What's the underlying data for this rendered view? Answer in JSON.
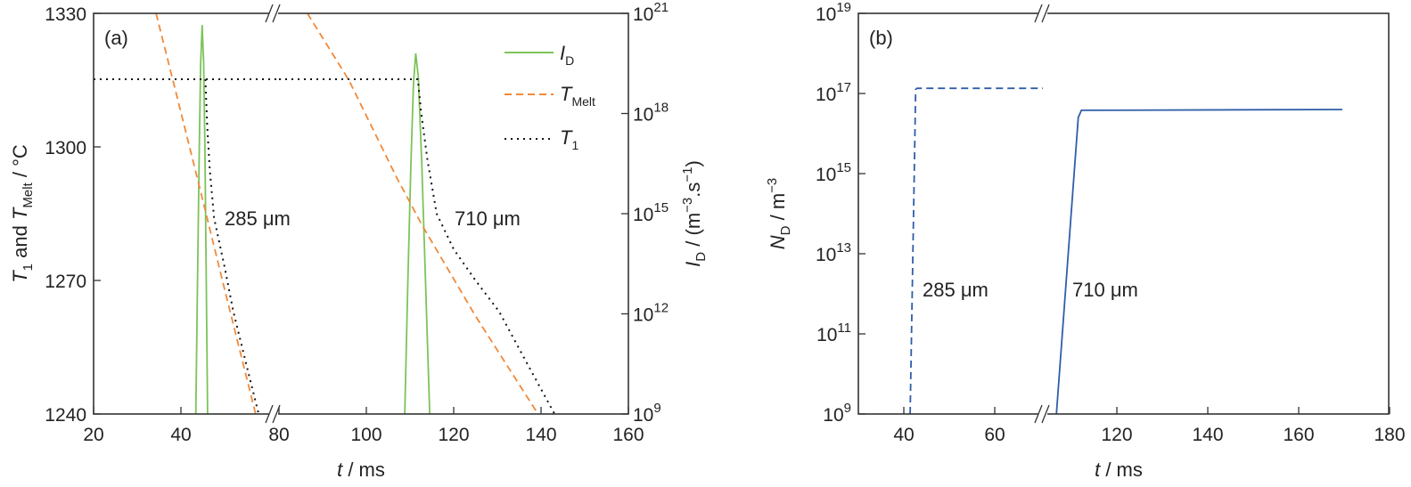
{
  "chart_data": [
    {
      "type": "line",
      "panel_label": "(a)",
      "xlabel": {
        "var": "t",
        "unit": " / ms"
      },
      "ylabel_left": {
        "v1": "T",
        "s1": "1",
        "mid": " and ",
        "v2": "T",
        "s2": "Melt",
        "unit": " / °C"
      },
      "ylabel_right": {
        "v": "I",
        "s": "D",
        "unit": " / (m",
        "e1": "−3",
        "mid": ".s",
        "e2": "−1",
        "close": ")"
      },
      "x_broken_axis": {
        "segments": [
          [
            20,
            62
          ],
          [
            80,
            160
          ]
        ]
      },
      "xticks": [
        20,
        40,
        80,
        100,
        120,
        140,
        160
      ],
      "ylim_left": [
        1240,
        1330
      ],
      "yticks_left": [
        1240,
        1270,
        1300,
        1330
      ],
      "ylim_right_log10": [
        9,
        21
      ],
      "yticks_right_base": "10",
      "yticks_right_exp": [
        9,
        12,
        15,
        18,
        21
      ],
      "legend": {
        "placement": "top-right",
        "entries": [
          {
            "v": "I",
            "s": "D",
            "color": "#7cc35a",
            "style": "solid"
          },
          {
            "v": "T",
            "s": "Melt",
            "color": "#f0893a",
            "style": "dashed"
          },
          {
            "v": "T",
            "s": "1",
            "color": "#111111",
            "style": "dotted"
          }
        ]
      },
      "annotations": [
        "285 μm",
        "710 μm"
      ],
      "series": [
        {
          "name": "I_D 285 μm",
          "axis": "right",
          "color": "#7cc35a",
          "style": "solid",
          "points": [
            [
              43.4,
              9
            ],
            [
              43.8,
              13
            ],
            [
              44.2,
              17
            ],
            [
              44.5,
              19.5
            ],
            [
              44.85,
              20.65
            ],
            [
              45.2,
              19.5
            ],
            [
              45.5,
              17
            ],
            [
              45.8,
              13
            ],
            [
              46.1,
              9
            ]
          ]
        },
        {
          "name": "I_D 710 μm",
          "axis": "right",
          "color": "#7cc35a",
          "style": "solid",
          "points": [
            [
              108.8,
              9
            ],
            [
              109.5,
              13
            ],
            [
              110.2,
              16.5
            ],
            [
              110.8,
              18.9
            ],
            [
              111.3,
              19.8
            ],
            [
              111.9,
              19.1
            ],
            [
              112.7,
              16.5
            ],
            [
              113.6,
              12.8
            ],
            [
              114.5,
              9
            ]
          ]
        },
        {
          "name": "T_Melt 285 μm",
          "axis": "left",
          "color": "#f0893a",
          "style": "dashed",
          "points": [
            [
              34.3,
              1330
            ],
            [
              38.4,
              1314
            ],
            [
              44,
              1292
            ],
            [
              50,
              1268
            ],
            [
              57.1,
              1240
            ]
          ]
        },
        {
          "name": "T_Melt 710 μm",
          "axis": "left",
          "color": "#f0893a",
          "style": "dashed",
          "points": [
            [
              86.5,
              1330
            ],
            [
              96,
              1315
            ],
            [
              107,
              1293
            ],
            [
              113,
              1282
            ],
            [
              125,
              1262
            ],
            [
              139.3,
              1240
            ]
          ]
        },
        {
          "name": "T_1 285 μm",
          "axis": "left",
          "color": "#111111",
          "style": "dotted",
          "points": [
            [
              45.6,
              1315.2
            ],
            [
              46.0,
              1305
            ],
            [
              46.6,
              1295
            ],
            [
              47.6,
              1284
            ],
            [
              50,
              1273
            ],
            [
              52,
              1263
            ],
            [
              55,
              1251
            ],
            [
              57.8,
              1240
            ]
          ]
        },
        {
          "name": "T_1 710 μm",
          "axis": "left",
          "color": "#111111",
          "style": "dotted",
          "points": [
            [
              20,
              1315.2
            ],
            [
              62,
              1315.2
            ],
            [
              80,
              1315.2
            ],
            [
              111.8,
              1315.2
            ],
            [
              112.5,
              1308
            ],
            [
              114,
              1297
            ],
            [
              116.1,
              1285
            ],
            [
              120,
              1277
            ],
            [
              125,
              1270
            ],
            [
              130.4,
              1263
            ],
            [
              137,
              1251
            ],
            [
              143.1,
              1240
            ]
          ]
        }
      ]
    },
    {
      "type": "line",
      "panel_label": "(b)",
      "xlabel": {
        "var": "t",
        "unit": " / ms"
      },
      "ylabel": {
        "v": "N",
        "s": "D",
        "unit": " / m",
        "e": "−3"
      },
      "x_broken_axis": {
        "segments": [
          [
            30,
            70.6
          ],
          [
            103.7,
            180
          ]
        ]
      },
      "xticks": [
        40,
        60,
        120,
        140,
        160,
        180
      ],
      "ylim_log10": [
        9,
        19
      ],
      "yticks_base": "10",
      "yticks_exp": [
        9,
        11,
        13,
        15,
        17,
        19
      ],
      "annotations": [
        "285 μm",
        "710 μm"
      ],
      "series": [
        {
          "name": "N_D 285 μm",
          "color": "#2f5ea8",
          "style": "dashed",
          "points": [
            [
              41.4,
              9
            ],
            [
              42.6,
              17.1
            ],
            [
              42.9,
              17.13
            ],
            [
              70.6,
              17.13
            ]
          ]
        },
        {
          "name": "N_D 710 μm",
          "color": "#2f5ea8",
          "style": "solid",
          "points": [
            [
              106.7,
              9
            ],
            [
              111.5,
              16.4
            ],
            [
              112.2,
              16.58
            ],
            [
              169.6,
              16.6
            ]
          ]
        }
      ]
    }
  ]
}
